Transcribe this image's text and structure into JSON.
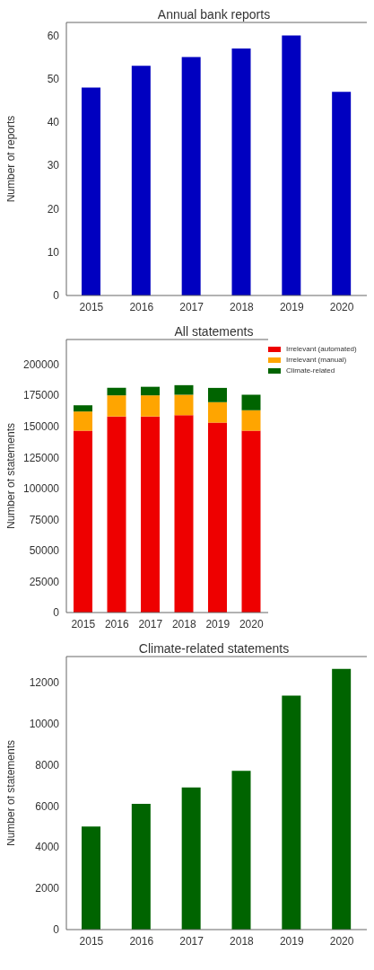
{
  "chart_data": [
    {
      "type": "bar",
      "title": "Annual bank reports",
      "ylabel": "Number of reports",
      "categories": [
        "2015",
        "2016",
        "2017",
        "2018",
        "2019",
        "2020"
      ],
      "values": [
        48,
        53,
        55,
        57,
        60,
        47
      ],
      "color": "#0000c0",
      "ylim": [
        0,
        63
      ],
      "yticks": [
        0,
        10,
        20,
        30,
        40,
        50,
        60
      ]
    },
    {
      "type": "bar",
      "title": "All statements",
      "ylabel": "Number of statements",
      "categories": [
        "2015",
        "2016",
        "2017",
        "2018",
        "2019",
        "2020"
      ],
      "stacked": true,
      "legend": "top right",
      "series": [
        {
          "name": "Irrelevant (automated)",
          "color": "#ee0000",
          "values": [
            146500,
            158000,
            158000,
            159000,
            153000,
            146500
          ]
        },
        {
          "name": "Irrelevant (manual)",
          "color": "#ffa500",
          "values": [
            15500,
            17000,
            17000,
            16500,
            16500,
            16500
          ]
        },
        {
          "name": "Climate-related",
          "color": "#006400",
          "values": [
            5000,
            6100,
            6900,
            7700,
            11500,
            12500
          ]
        }
      ],
      "ylim": [
        0,
        220000
      ],
      "yticks": [
        0,
        25000,
        50000,
        75000,
        100000,
        125000,
        150000,
        175000,
        200000
      ]
    },
    {
      "type": "bar",
      "title": "Climate-related statements",
      "ylabel": "Number of statements",
      "categories": [
        "2015",
        "2016",
        "2017",
        "2018",
        "2019",
        "2020"
      ],
      "values": [
        5000,
        6100,
        6900,
        7700,
        11350,
        12650
      ],
      "color": "#006400",
      "ylim": [
        0,
        13250
      ],
      "yticks": [
        0,
        2000,
        4000,
        6000,
        8000,
        10000,
        12000
      ]
    }
  ]
}
